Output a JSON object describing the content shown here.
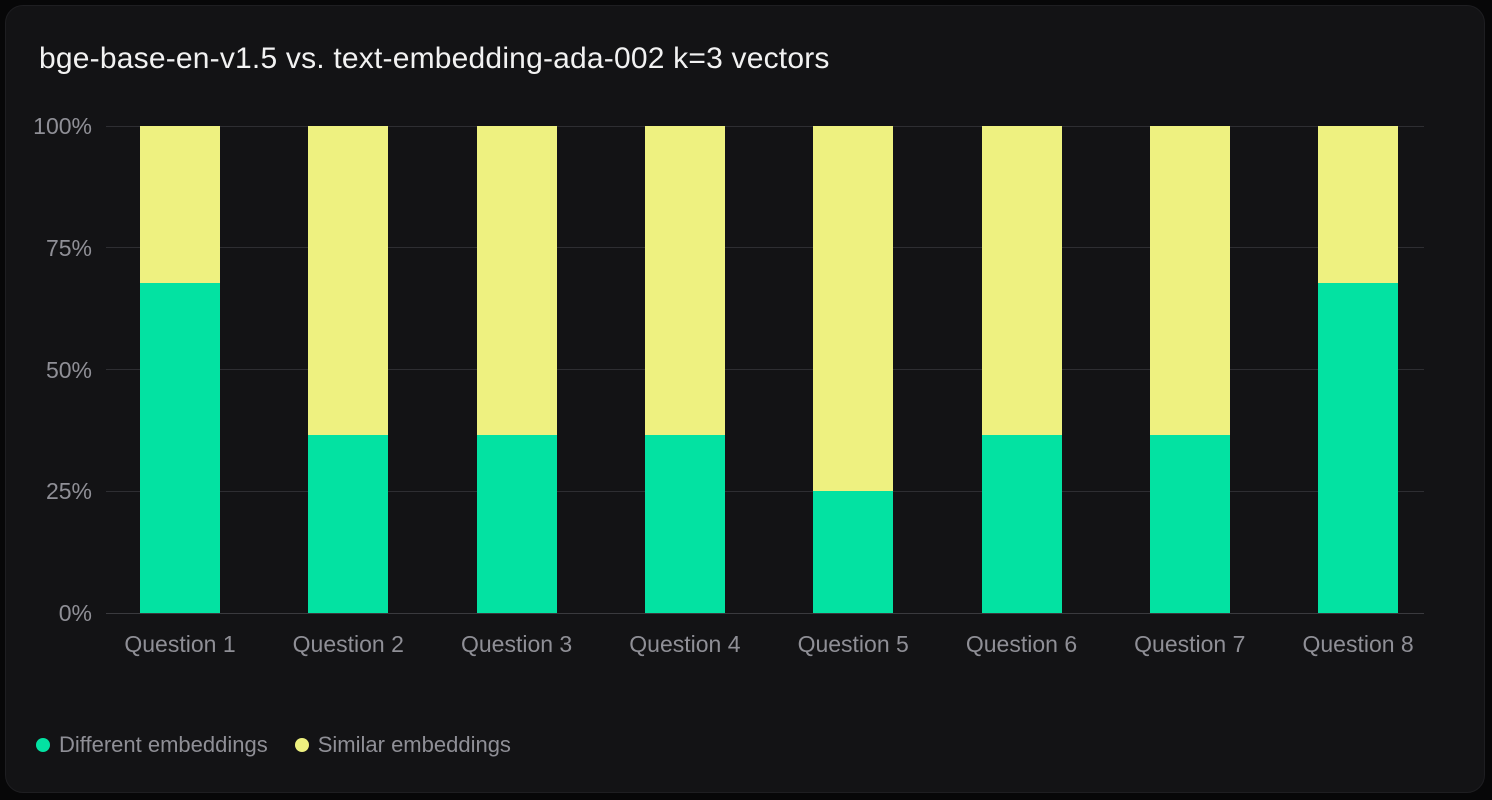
{
  "title": "bge-base-en-v1.5 vs. text-embedding-ada-002 k=3 vectors",
  "colors": {
    "background": "#070708",
    "card": "#131315",
    "gridline": "#2e2e32",
    "axis_line": "#3a3a3e",
    "title_text": "#f2f2f2",
    "label_text": "#8f8f96",
    "different_embeddings": "#03e2a2",
    "similar_embeddings": "#eef180"
  },
  "chart_data": {
    "type": "bar",
    "stacked": true,
    "orientation": "vertical",
    "title": "bge-base-en-v1.5 vs. text-embedding-ada-002 k=3 vectors",
    "categories": [
      "Question 1",
      "Question 2",
      "Question 3",
      "Question 4",
      "Question 5",
      "Question 6",
      "Question 7",
      "Question 8"
    ],
    "series": [
      {
        "name": "Different embeddings",
        "color": "#03e2a2",
        "values": [
          67.7,
          36.6,
          36.6,
          36.6,
          25.0,
          36.6,
          36.6,
          67.7
        ]
      },
      {
        "name": "Similar embeddings",
        "color": "#eef180",
        "values": [
          32.3,
          63.4,
          63.4,
          63.4,
          75.0,
          63.4,
          63.4,
          32.3
        ]
      }
    ],
    "xlabel": "",
    "ylabel": "",
    "ylim": [
      0,
      100
    ],
    "yticks": [
      {
        "value": 0,
        "label": "0%"
      },
      {
        "value": 25,
        "label": "25%"
      },
      {
        "value": 50,
        "label": "50%"
      },
      {
        "value": 75,
        "label": "75%"
      },
      {
        "value": 100,
        "label": "100%"
      }
    ],
    "grid": "horizontal",
    "legend_position": "bottom-left",
    "legend": [
      "Different embeddings",
      "Similar embeddings"
    ]
  }
}
